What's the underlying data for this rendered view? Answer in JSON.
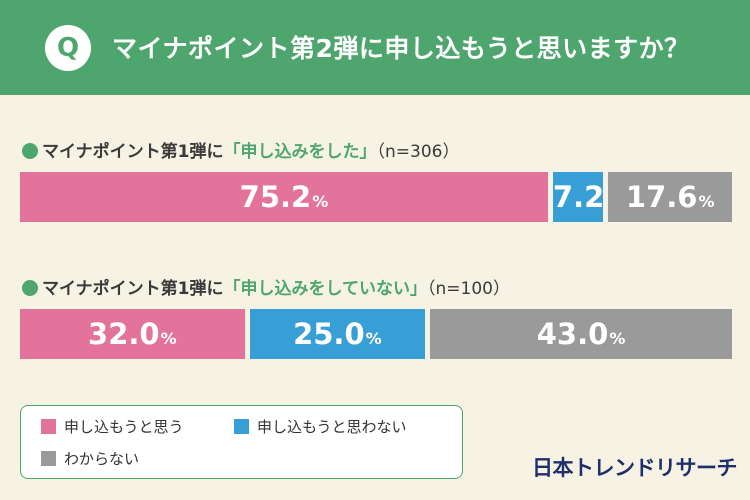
{
  "question": {
    "badge": "Q",
    "text": "マイナポイント第2弾に申し込もうと思いますか？"
  },
  "colors": {
    "header": "#4ea66e",
    "background": "#f6f3e4",
    "apply": "#e3739a",
    "not_apply": "#389fd6",
    "unknown": "#9a9a9a",
    "brand": "#1e2f6b"
  },
  "chart_data": [
    {
      "type": "bar",
      "stacked": true,
      "orientation": "horizontal",
      "title_prefix": "マイナポイント第1弾に",
      "title_highlight": "「申し込みをした」",
      "title_n": "（n=306）",
      "series": [
        {
          "name": "申し込もうと思う",
          "value": 75.2,
          "label": "75.2",
          "color": "#e3739a"
        },
        {
          "name": "申し込もうと思わない",
          "value": 7.2,
          "label": "7.2",
          "color": "#389fd6"
        },
        {
          "name": "わからない",
          "value": 17.6,
          "label": "17.6",
          "color": "#9a9a9a"
        }
      ],
      "unit": "%"
    },
    {
      "type": "bar",
      "stacked": true,
      "orientation": "horizontal",
      "title_prefix": "マイナポイント第1弾に",
      "title_highlight": "「申し込みをしていない」",
      "title_n": "（n=100）",
      "series": [
        {
          "name": "申し込もうと思う",
          "value": 32.0,
          "label": "32.0",
          "color": "#e3739a"
        },
        {
          "name": "申し込もうと思わない",
          "value": 25.0,
          "label": "25.0",
          "color": "#389fd6"
        },
        {
          "name": "わからない",
          "value": 43.0,
          "label": "43.0",
          "color": "#9a9a9a"
        }
      ],
      "unit": "%"
    }
  ],
  "legend": {
    "items": [
      {
        "label": "申し込もうと思う",
        "color": "#e3739a"
      },
      {
        "label": "申し込もうと思わない",
        "color": "#389fd6"
      },
      {
        "label": "わからない",
        "color": "#9a9a9a"
      }
    ]
  },
  "brand": "日本トレンドリサーチ"
}
